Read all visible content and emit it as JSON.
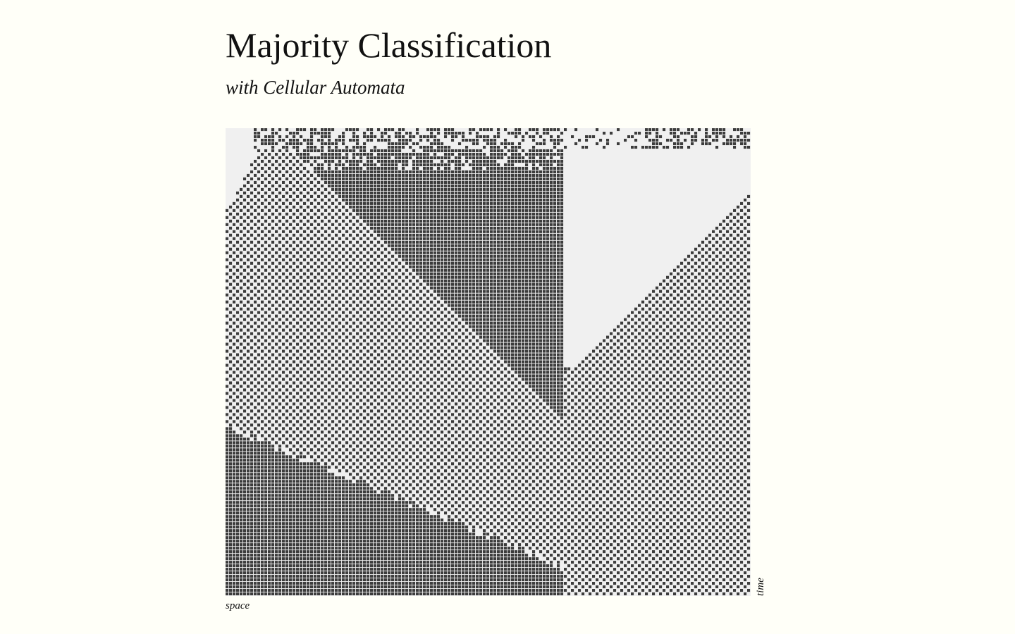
{
  "header": {
    "title": "Majority Classification",
    "subtitle": "with Cellular Automata"
  },
  "figure": {
    "x_axis_label": "space",
    "y_axis_label": "time",
    "grid": {
      "columns": 149,
      "rows": 133
    },
    "colors": {
      "background": "#fffff8",
      "cell_on": "#3c3c3c",
      "cell_off": "#f0f0f0",
      "text": "#111111"
    }
  }
}
